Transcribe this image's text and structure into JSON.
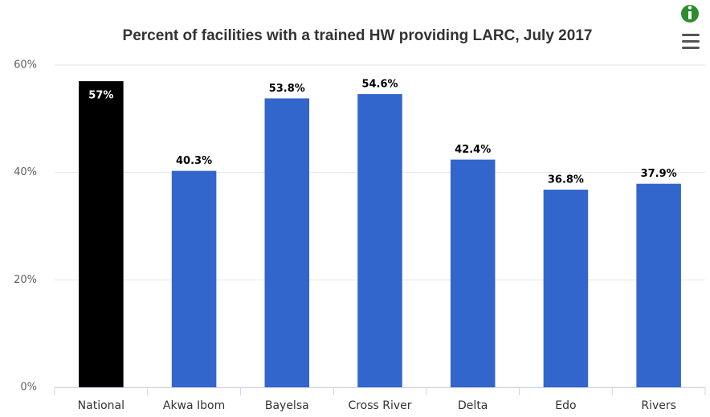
{
  "chart_data": {
    "type": "bar",
    "title": "Percent of facilities with a trained HW providing LARC, July 2017",
    "categories": [
      "National",
      "Akwa Ibom",
      "Bayelsa",
      "Cross River",
      "Delta",
      "Edo",
      "Rivers"
    ],
    "values": [
      57,
      40.3,
      53.8,
      54.6,
      42.4,
      36.8,
      37.9
    ],
    "value_labels": [
      "57%",
      "40.3%",
      "53.8%",
      "54.6%",
      "42.4%",
      "36.8%",
      "37.9%"
    ],
    "colors": [
      "#000000",
      "#3366cc",
      "#3366cc",
      "#3366cc",
      "#3366cc",
      "#3366cc",
      "#3366cc"
    ],
    "ylim": [
      0,
      60
    ],
    "yticks": [
      {
        "value": 0,
        "label": "0%"
      },
      {
        "value": 20,
        "label": "20%"
      },
      {
        "value": 40,
        "label": "40%"
      },
      {
        "value": 60,
        "label": "60%"
      }
    ],
    "grid": true
  }
}
